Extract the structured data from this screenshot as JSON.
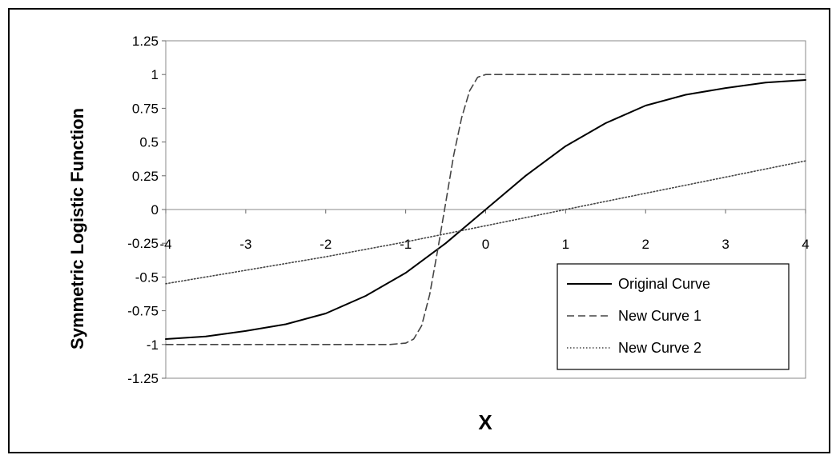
{
  "chart_data": {
    "type": "line",
    "title": "",
    "xlabel": "X",
    "ylabel": "Symmetric Logistic Function",
    "xlim": [
      -4,
      4
    ],
    "ylim": [
      -1.25,
      1.25
    ],
    "x_ticks": [
      -4,
      -3,
      -2,
      -1,
      0,
      1,
      2,
      3,
      4
    ],
    "y_ticks": [
      1.25,
      1,
      0.75,
      0.5,
      0.25,
      0,
      -0.25,
      -0.5,
      -0.75,
      -1,
      -1.25
    ],
    "x_tick_labels": [
      "-4",
      "-3",
      "-2",
      "-1",
      "0",
      "1",
      "2",
      "3",
      "4"
    ],
    "y_tick_labels": [
      "1.25",
      "1",
      "0.75",
      "0.5",
      "0.25",
      "0",
      "-0.25",
      "-0.5",
      "-0.75",
      "-1",
      "-1.25"
    ],
    "grid": false,
    "legend_position": "bottom-right",
    "series": [
      {
        "name": "Original Curve",
        "style": "solid",
        "x": [
          -4,
          -3.5,
          -3,
          -2.5,
          -2,
          -1.5,
          -1,
          -0.5,
          0,
          0.5,
          1,
          1.5,
          2,
          2.5,
          3,
          3.5,
          4
        ],
        "y": [
          -0.96,
          -0.94,
          -0.9,
          -0.85,
          -0.77,
          -0.64,
          -0.47,
          -0.25,
          0,
          0.25,
          0.47,
          0.64,
          0.77,
          0.85,
          0.9,
          0.94,
          0.96
        ]
      },
      {
        "name": "New Curve 1",
        "style": "dashed",
        "x": [
          -4,
          -3,
          -2,
          -1.2,
          -1,
          -0.9,
          -0.8,
          -0.7,
          -0.6,
          -0.5,
          -0.4,
          -0.3,
          -0.2,
          -0.1,
          0,
          1,
          2,
          3,
          4
        ],
        "y": [
          -1,
          -1,
          -1,
          -1,
          -0.99,
          -0.96,
          -0.86,
          -0.63,
          -0.3,
          0.05,
          0.4,
          0.68,
          0.88,
          0.98,
          1,
          1,
          1,
          1,
          1
        ]
      },
      {
        "name": "New Curve 2",
        "style": "dotted",
        "x": [
          -4,
          -3,
          -2,
          -1,
          0,
          1,
          2,
          3,
          4
        ],
        "y": [
          -0.55,
          -0.45,
          -0.35,
          -0.24,
          -0.12,
          0,
          0.12,
          0.24,
          0.36
        ]
      }
    ]
  }
}
